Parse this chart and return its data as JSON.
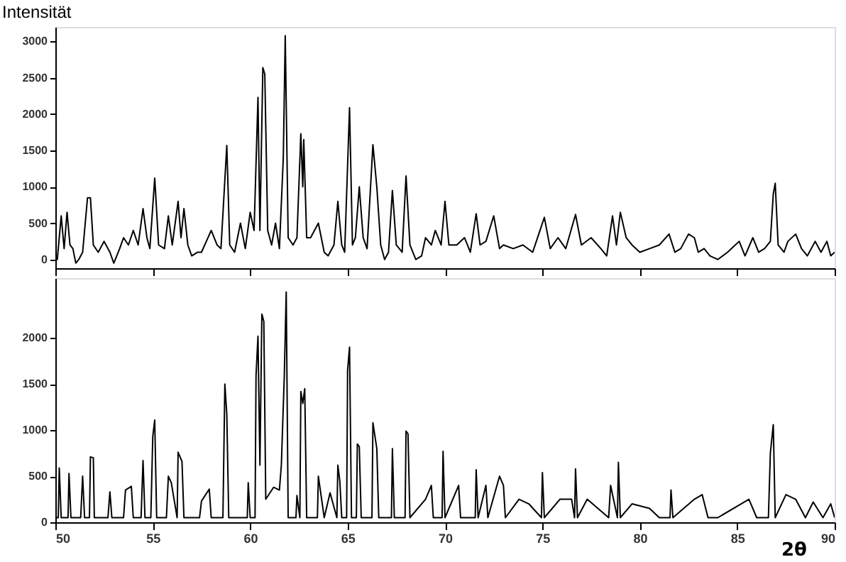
{
  "chart_data": [
    {
      "type": "line",
      "ylabel": "Intensität",
      "xlim": [
        50,
        90
      ],
      "xticks": [
        50,
        55,
        60,
        65,
        70,
        75,
        80,
        85,
        90
      ],
      "ylim": [
        -120,
        3200
      ],
      "yticks": [
        0,
        500,
        1000,
        1500,
        2000,
        2500,
        3000
      ],
      "tick_labels": "y",
      "grid": false,
      "line_style": "solid",
      "series": [
        {
          "color": "#000000",
          "x": [
            50.0,
            50.1,
            50.3,
            50.45,
            50.6,
            50.75,
            50.9,
            51.05,
            51.2,
            51.4,
            51.65,
            51.8,
            51.95,
            52.2,
            52.5,
            52.8,
            53.0,
            53.3,
            53.5,
            53.75,
            54.0,
            54.25,
            54.5,
            54.7,
            54.85,
            55.1,
            55.3,
            55.6,
            55.8,
            56.0,
            56.3,
            56.45,
            56.6,
            56.8,
            57.0,
            57.3,
            57.5,
            57.75,
            58.0,
            58.3,
            58.5,
            58.8,
            58.95,
            59.2,
            59.5,
            59.75,
            60.0,
            60.2,
            60.4,
            60.5,
            60.65,
            60.75,
            60.9,
            61.1,
            61.3,
            61.5,
            61.7,
            61.8,
            61.95,
            62.2,
            62.4,
            62.6,
            62.7,
            62.75,
            62.9,
            63.1,
            63.5,
            63.8,
            64.0,
            64.3,
            64.5,
            64.7,
            64.85,
            65.1,
            65.25,
            65.4,
            65.6,
            65.8,
            66.0,
            66.3,
            66.5,
            66.7,
            66.9,
            67.1,
            67.3,
            67.5,
            67.8,
            68.0,
            68.2,
            68.5,
            68.8,
            69.0,
            69.3,
            69.5,
            69.8,
            70.0,
            70.2,
            70.6,
            71.0,
            71.3,
            71.6,
            71.8,
            72.1,
            72.5,
            72.8,
            73.0,
            73.5,
            74.0,
            74.5,
            75.1,
            75.4,
            75.8,
            76.2,
            76.7,
            77.0,
            77.5,
            78.0,
            78.3,
            78.6,
            78.8,
            79.0,
            79.3,
            79.6,
            80.0,
            80.5,
            81.0,
            81.5,
            81.8,
            82.1,
            82.5,
            82.8,
            83.0,
            83.3,
            83.6,
            84.0,
            84.5,
            85.1,
            85.4,
            85.8,
            86.1,
            86.4,
            86.7,
            86.85,
            86.95,
            87.1,
            87.4,
            87.6,
            88.0,
            88.3,
            88.6,
            89.0,
            89.3,
            89.6,
            89.8,
            90.0
          ],
          "values": [
            50,
            0,
            600,
            150,
            650,
            200,
            150,
            -50,
            0,
            100,
            850,
            850,
            200,
            100,
            250,
            100,
            -50,
            150,
            300,
            200,
            400,
            200,
            700,
            300,
            150,
            1120,
            200,
            150,
            600,
            200,
            800,
            300,
            700,
            200,
            50,
            100,
            100,
            250,
            400,
            200,
            150,
            1570,
            200,
            100,
            500,
            150,
            650,
            400,
            2230,
            400,
            2640,
            2550,
            400,
            200,
            500,
            150,
            1400,
            3080,
            300,
            200,
            300,
            1730,
            1000,
            1650,
            300,
            300,
            500,
            100,
            50,
            200,
            800,
            200,
            100,
            2090,
            200,
            300,
            1000,
            300,
            150,
            1580,
            1000,
            200,
            0,
            100,
            950,
            200,
            100,
            1150,
            200,
            0,
            50,
            300,
            200,
            400,
            200,
            800,
            200,
            200,
            300,
            100,
            630,
            200,
            250,
            600,
            150,
            200,
            150,
            200,
            100,
            580,
            150,
            300,
            150,
            620,
            200,
            300,
            150,
            50,
            600,
            200,
            650,
            300,
            200,
            100,
            150,
            200,
            350,
            100,
            150,
            350,
            300,
            100,
            150,
            50,
            0,
            100,
            250,
            50,
            300,
            100,
            150,
            250,
            900,
            1050,
            200,
            100,
            250,
            350,
            150,
            50,
            250,
            100,
            250,
            50,
            100
          ]
        }
      ]
    },
    {
      "type": "line",
      "xlabel": "2θ",
      "xlim": [
        50,
        90
      ],
      "xticks": [
        50,
        55,
        60,
        65,
        70,
        75,
        80,
        85,
        90
      ],
      "ylim": [
        0,
        2650
      ],
      "yticks": [
        0,
        500,
        1000,
        1500,
        2000
      ],
      "grid": false,
      "line_style": "solid",
      "series": [
        {
          "color": "#000000",
          "x": [
            50.0,
            50.15,
            50.2,
            50.3,
            50.45,
            50.65,
            50.7,
            50.8,
            51.3,
            51.4,
            51.5,
            51.75,
            51.8,
            51.95,
            52.0,
            52.1,
            52.7,
            52.8,
            52.9,
            53.5,
            53.6,
            53.9,
            54.0,
            54.4,
            54.5,
            54.6,
            54.9,
            55.0,
            55.1,
            55.2,
            55.7,
            55.8,
            55.95,
            56.25,
            56.3,
            56.5,
            56.6,
            57.4,
            57.5,
            57.9,
            58.0,
            58.6,
            58.7,
            58.8,
            58.9,
            59.85,
            59.9,
            60.0,
            60.25,
            60.3,
            60.4,
            60.5,
            60.6,
            60.7,
            60.8,
            61.2,
            61.5,
            61.6,
            61.75,
            61.85,
            61.95,
            62.35,
            62.4,
            62.55,
            62.6,
            62.7,
            62.8,
            62.9,
            63.45,
            63.5,
            63.6,
            63.8,
            64.1,
            64.45,
            64.5,
            64.6,
            64.7,
            64.95,
            65.0,
            65.1,
            65.2,
            65.45,
            65.5,
            65.6,
            65.7,
            66.25,
            66.3,
            66.5,
            66.6,
            67.25,
            67.3,
            67.4,
            67.95,
            68.0,
            68.1,
            68.2,
            69.0,
            69.3,
            69.4,
            69.85,
            69.9,
            70.0,
            70.7,
            70.8,
            71.55,
            71.6,
            71.7,
            72.1,
            72.2,
            72.8,
            73.0,
            73.1,
            73.8,
            74.3,
            74.95,
            75.0,
            75.1,
            75.9,
            76.5,
            76.65,
            76.7,
            76.8,
            77.3,
            78.4,
            78.5,
            78.85,
            78.9,
            79.0,
            79.6,
            80.5,
            81.0,
            81.55,
            81.6,
            81.7,
            82.8,
            83.2,
            83.5,
            84.0,
            85.2,
            85.6,
            86.0,
            86.6,
            86.7,
            86.85,
            86.95,
            87.5,
            88.0,
            88.5,
            88.9,
            89.4,
            89.8,
            90.0
          ],
          "values": [
            50,
            50,
            590,
            50,
            50,
            50,
            530,
            50,
            50,
            500,
            50,
            50,
            710,
            700,
            50,
            50,
            50,
            330,
            50,
            50,
            350,
            390,
            50,
            50,
            670,
            50,
            50,
            930,
            1110,
            50,
            50,
            500,
            430,
            50,
            760,
            660,
            50,
            50,
            230,
            360,
            50,
            50,
            1500,
            1170,
            50,
            50,
            430,
            50,
            50,
            1590,
            2020,
            620,
            2260,
            2180,
            250,
            380,
            350,
            620,
            1580,
            2500,
            50,
            50,
            290,
            50,
            1420,
            1290,
            1450,
            50,
            50,
            500,
            350,
            50,
            320,
            50,
            620,
            450,
            50,
            50,
            1650,
            1900,
            50,
            50,
            850,
            820,
            50,
            50,
            1080,
            800,
            50,
            50,
            800,
            50,
            50,
            990,
            960,
            50,
            250,
            400,
            50,
            50,
            770,
            50,
            400,
            50,
            50,
            570,
            50,
            400,
            50,
            500,
            400,
            50,
            250,
            200,
            50,
            540,
            50,
            250,
            250,
            50,
            580,
            50,
            250,
            50,
            400,
            50,
            650,
            50,
            200,
            150,
            50,
            50,
            350,
            50,
            250,
            300,
            50,
            50,
            200,
            250,
            50,
            50,
            750,
            1060,
            50,
            300,
            250,
            50,
            220,
            50,
            200,
            50
          ]
        }
      ]
    }
  ]
}
